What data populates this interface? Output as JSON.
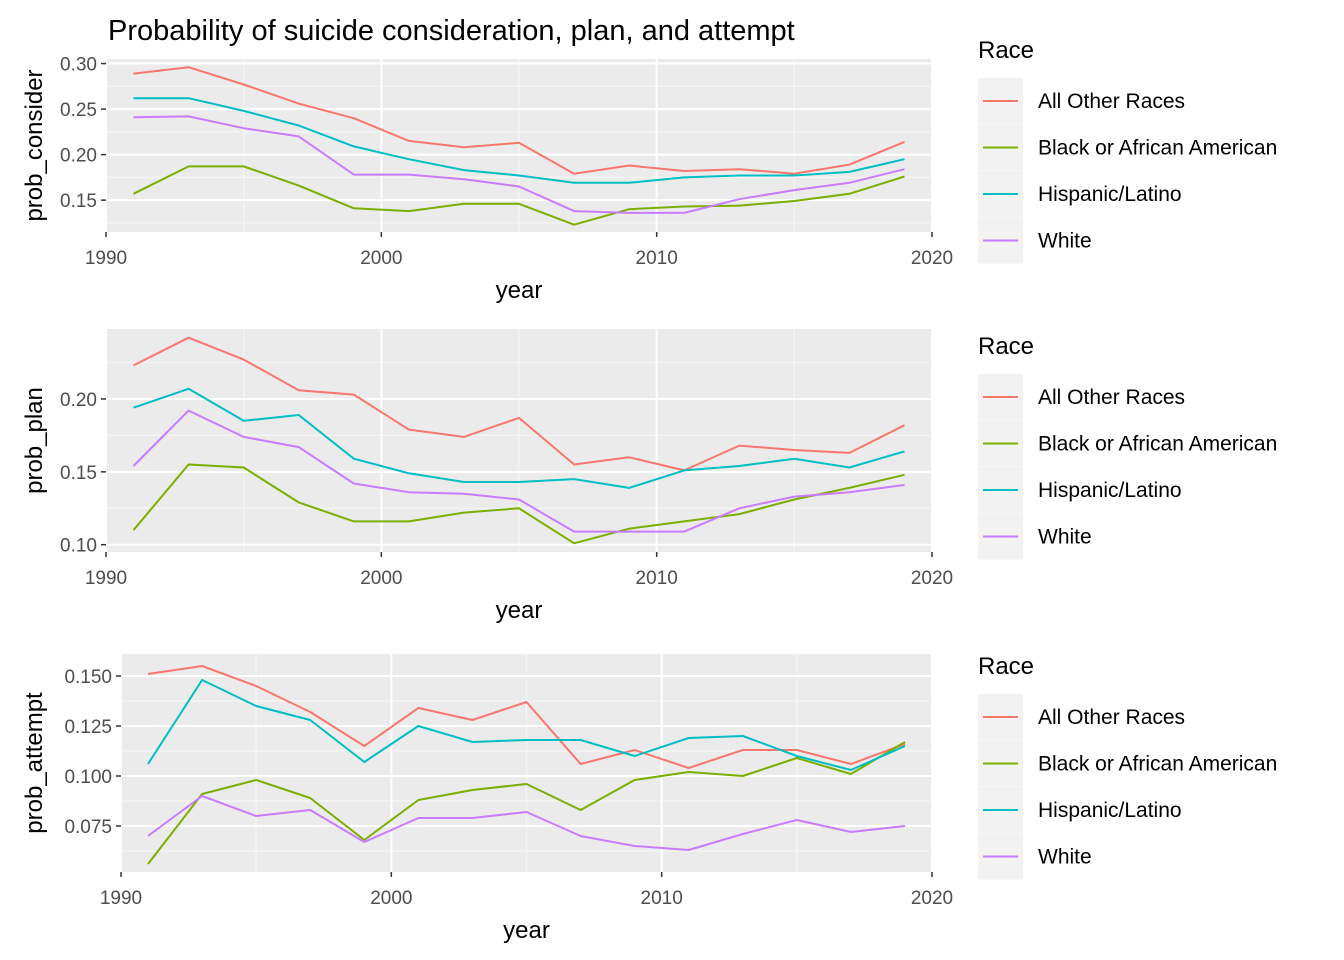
{
  "title": "Probability of suicide consideration, plan, and attempt",
  "colors": {
    "panel_background": "#ebebeb",
    "grid_major": "#ffffff",
    "grid_minor": "#f5f5f5",
    "axis_tick": "#333333",
    "tick_label": "#4d4d4d",
    "legend_key_background": "#f2f2f2"
  },
  "legend": {
    "title": "Race",
    "placement": "right",
    "entries": [
      {
        "name": "All Other Races",
        "color": "#F8766D"
      },
      {
        "name": "Black or African American",
        "color": "#7CAE00"
      },
      {
        "name": "Hispanic/Latino",
        "color": "#00BFC4"
      },
      {
        "name": "White",
        "color": "#C77CFF"
      }
    ]
  },
  "chart_data": [
    {
      "type": "line",
      "xlabel": "year",
      "ylabel": "prob_consider",
      "xlim": [
        1990,
        2020
      ],
      "ylim": [
        0.115,
        0.305
      ],
      "xticks": [
        1990,
        2000,
        2010,
        2020
      ],
      "yticks": [
        0.15,
        0.2,
        0.25,
        0.3
      ],
      "ytick_labels": [
        "0.15",
        "0.20",
        "0.25",
        "0.30"
      ],
      "grid": true,
      "x": [
        1991,
        1993,
        1995,
        1997,
        1999,
        2001,
        2003,
        2005,
        2007,
        2009,
        2011,
        2013,
        2015,
        2017,
        2019
      ],
      "series": [
        {
          "name": "All Other Races",
          "values": [
            0.289,
            0.296,
            0.277,
            0.256,
            0.24,
            0.215,
            0.208,
            0.213,
            0.179,
            0.188,
            0.182,
            0.184,
            0.179,
            0.189,
            0.214
          ]
        },
        {
          "name": "Black or African American",
          "values": [
            0.157,
            0.187,
            0.187,
            0.166,
            0.141,
            0.138,
            0.146,
            0.146,
            0.123,
            0.14,
            0.143,
            0.144,
            0.149,
            0.157,
            0.176
          ]
        },
        {
          "name": "Hispanic/Latino",
          "values": [
            0.262,
            0.262,
            0.248,
            0.232,
            0.209,
            0.195,
            0.183,
            0.177,
            0.169,
            0.169,
            0.175,
            0.177,
            0.177,
            0.181,
            0.195
          ]
        },
        {
          "name": "White",
          "values": [
            0.241,
            0.242,
            0.229,
            0.22,
            0.178,
            0.178,
            0.173,
            0.165,
            0.138,
            0.136,
            0.136,
            0.151,
            0.161,
            0.169,
            0.184
          ]
        }
      ]
    },
    {
      "type": "line",
      "xlabel": "year",
      "ylabel": "prob_plan",
      "xlim": [
        1990,
        2020
      ],
      "ylim": [
        0.095,
        0.248
      ],
      "xticks": [
        1990,
        2000,
        2010,
        2020
      ],
      "yticks": [
        0.1,
        0.15,
        0.2
      ],
      "ytick_labels": [
        "0.10",
        "0.15",
        "0.20"
      ],
      "grid": true,
      "x": [
        1991,
        1993,
        1995,
        1997,
        1999,
        2001,
        2003,
        2005,
        2007,
        2009,
        2011,
        2013,
        2015,
        2017,
        2019
      ],
      "series": [
        {
          "name": "All Other Races",
          "values": [
            0.223,
            0.242,
            0.227,
            0.206,
            0.203,
            0.179,
            0.174,
            0.187,
            0.155,
            0.16,
            0.151,
            0.168,
            0.165,
            0.163,
            0.182
          ]
        },
        {
          "name": "Black or African American",
          "values": [
            0.11,
            0.155,
            0.153,
            0.129,
            0.116,
            0.116,
            0.122,
            0.125,
            0.101,
            0.111,
            0.116,
            0.121,
            0.131,
            0.139,
            0.148
          ]
        },
        {
          "name": "Hispanic/Latino",
          "values": [
            0.194,
            0.207,
            0.185,
            0.189,
            0.159,
            0.149,
            0.143,
            0.143,
            0.145,
            0.139,
            0.151,
            0.154,
            0.159,
            0.153,
            0.164
          ]
        },
        {
          "name": "White",
          "values": [
            0.154,
            0.192,
            0.174,
            0.167,
            0.142,
            0.136,
            0.135,
            0.131,
            0.109,
            0.109,
            0.109,
            0.125,
            0.133,
            0.136,
            0.141
          ]
        }
      ]
    },
    {
      "type": "line",
      "xlabel": "year",
      "ylabel": "prob_attempt",
      "xlim": [
        1990,
        2020
      ],
      "ylim": [
        0.052,
        0.161
      ],
      "xticks": [
        1990,
        2000,
        2010,
        2020
      ],
      "yticks": [
        0.075,
        0.1,
        0.125,
        0.15
      ],
      "ytick_labels": [
        "0.075",
        "0.100",
        "0.125",
        "0.150"
      ],
      "grid": true,
      "x": [
        1991,
        1993,
        1995,
        1997,
        1999,
        2001,
        2003,
        2005,
        2007,
        2009,
        2011,
        2013,
        2015,
        2017,
        2019
      ],
      "series": [
        {
          "name": "All Other Races",
          "values": [
            0.151,
            0.155,
            0.145,
            0.132,
            0.115,
            0.134,
            0.128,
            0.137,
            0.106,
            0.113,
            0.104,
            0.113,
            0.113,
            0.106,
            0.116
          ]
        },
        {
          "name": "Black or African American",
          "values": [
            0.056,
            0.091,
            0.098,
            0.089,
            0.068,
            0.088,
            0.093,
            0.096,
            0.083,
            0.098,
            0.102,
            0.1,
            0.109,
            0.101,
            0.117
          ]
        },
        {
          "name": "Hispanic/Latino",
          "values": [
            0.106,
            0.148,
            0.135,
            0.128,
            0.107,
            0.125,
            0.117,
            0.118,
            0.118,
            0.11,
            0.119,
            0.12,
            0.11,
            0.103,
            0.115
          ]
        },
        {
          "name": "White",
          "values": [
            0.07,
            0.09,
            0.08,
            0.083,
            0.067,
            0.079,
            0.079,
            0.082,
            0.07,
            0.065,
            0.063,
            0.071,
            0.078,
            0.072,
            0.075
          ]
        }
      ]
    }
  ]
}
